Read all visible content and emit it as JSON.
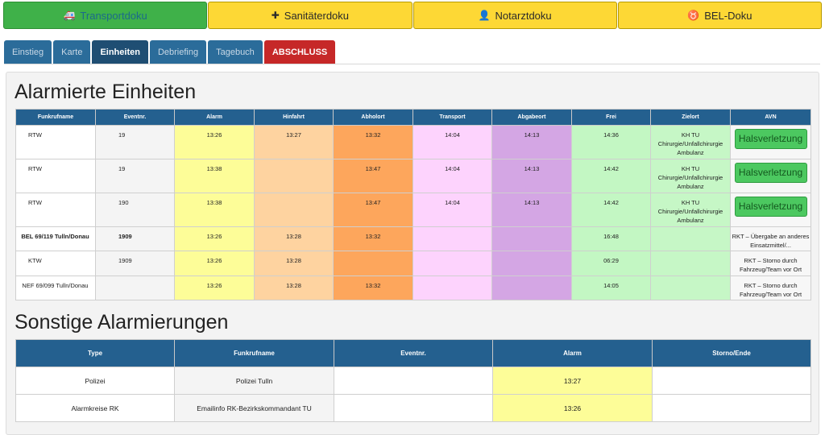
{
  "top_tabs": [
    {
      "label": "Transportdoku",
      "icon": "ambulance-icon",
      "glyph": "🚑"
    },
    {
      "label": "Sanitäterdoku",
      "icon": "medkit-icon",
      "glyph": "✚"
    },
    {
      "label": "Notarztdoku",
      "icon": "doctor-icon",
      "glyph": "👤"
    },
    {
      "label": "BEL-Doku",
      "icon": "bel-icon",
      "glyph": "♉"
    }
  ],
  "sub_tabs": [
    "Einstieg",
    "Karte",
    "Einheiten",
    "Debriefing",
    "Tagebuch",
    "ABSCHLUSS"
  ],
  "alarmierte": {
    "title": "Alarmierte Einheiten",
    "headers": [
      "Funkrufname",
      "Eventnr.",
      "Alarm",
      "Hinfahrt",
      "Abholort",
      "Transport",
      "Abgabeort",
      "Frei",
      "Zielort",
      "AVN"
    ],
    "rows": [
      {
        "funk": "RTW",
        "evt": "19",
        "alarm": "13:26",
        "hin": "13:27",
        "abh": "13:32",
        "trans": "14:04",
        "abg": "14:13",
        "frei": "14:36",
        "ziel": "KH TU Chirurgie/Unfallchirurgie Ambulanz",
        "avn": "Halsverletzung"
      },
      {
        "funk": "RTW",
        "evt": "19",
        "alarm": "13:38",
        "hin": "",
        "abh": "13:47",
        "trans": "14:04",
        "abg": "14:13",
        "frei": "14:42",
        "ziel": "KH TU Chirurgie/Unfallchirurgie Ambulanz",
        "avn": "Halsverletzung"
      },
      {
        "funk": "RTW",
        "evt": "190",
        "alarm": "13:38",
        "hin": "",
        "abh": "13:47",
        "trans": "14:04",
        "abg": "14:13",
        "frei": "14:42",
        "ziel": "KH TU Chirurgie/Unfallchirurgie Ambulanz",
        "avn": "Halsverletzung"
      },
      {
        "funk": "BEL 69/119 Tulln/Donau",
        "evt": "1909",
        "alarm": "13:26",
        "hin": "13:28",
        "abh": "13:32",
        "trans": "",
        "abg": "",
        "frei": "16:48",
        "ziel": "",
        "avn": "RKT – Übergabe an anderes Einsatzmittel/..."
      },
      {
        "funk": "KTW",
        "evt": "1909",
        "alarm": "13:26",
        "hin": "13:28",
        "abh": "",
        "trans": "",
        "abg": "",
        "frei": "06:29",
        "ziel": "",
        "avn": "RKT – Storno durch Fahrzeug/Team vor Ort"
      },
      {
        "funk": "NEF 69/099 Tulln/Donau",
        "evt": "",
        "alarm": "13:26",
        "hin": "13:28",
        "abh": "13:32",
        "trans": "",
        "abg": "",
        "frei": "14:05",
        "ziel": "",
        "avn": "RKT – Storno durch Fahrzeug/Team vor Ort"
      }
    ]
  },
  "sonstige": {
    "title": "Sonstige Alarmierungen",
    "headers": [
      "Type",
      "Funkrufname",
      "Eventnr.",
      "Alarm",
      "Storno/Ende"
    ],
    "rows": [
      {
        "type": "Polizei",
        "funk": "Polizei Tulln",
        "evt": "",
        "alarm": "13:27",
        "storno": ""
      },
      {
        "type": "Alarmkreise RK",
        "funk": "Emailinfo RK-Bezirkskommandant TU",
        "evt": "",
        "alarm": "13:26",
        "storno": ""
      }
    ]
  }
}
